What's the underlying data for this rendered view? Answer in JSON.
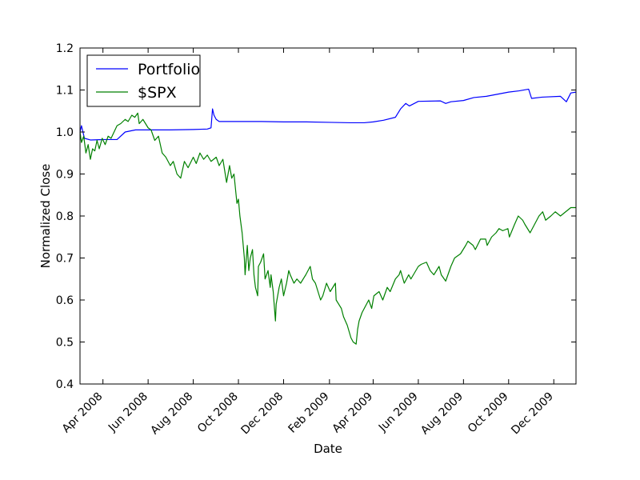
{
  "chart_data": {
    "type": "line",
    "xlabel": "Date",
    "ylabel": "Normalized Close",
    "xlim": [
      "2008-03-01",
      "2009-12-31"
    ],
    "ylim": [
      0.4,
      1.2
    ],
    "y_ticks": [
      "0.4",
      "0.5",
      "0.6",
      "0.7",
      "0.8",
      "0.9",
      "1.0",
      "1.1",
      "1.2"
    ],
    "x_ticks": [
      {
        "date": "2008-04-01",
        "label": "Apr 2008"
      },
      {
        "date": "2008-06-01",
        "label": "Jun 2008"
      },
      {
        "date": "2008-08-01",
        "label": "Aug 2008"
      },
      {
        "date": "2008-10-01",
        "label": "Oct 2008"
      },
      {
        "date": "2008-12-01",
        "label": "Dec 2008"
      },
      {
        "date": "2009-02-01",
        "label": "Feb 2009"
      },
      {
        "date": "2009-04-01",
        "label": "Apr 2009"
      },
      {
        "date": "2009-06-01",
        "label": "Jun 2009"
      },
      {
        "date": "2009-08-01",
        "label": "Aug 2009"
      },
      {
        "date": "2009-10-01",
        "label": "Oct 2009"
      },
      {
        "date": "2009-12-01",
        "label": "Dec 2009"
      }
    ],
    "grid": false,
    "legend_position": "upper-left",
    "series": [
      {
        "name": "Portfolio",
        "color": "#0000ff",
        "points": [
          [
            "2008-03-01",
            1.0
          ],
          [
            "2008-03-03",
            1.015
          ],
          [
            "2008-03-07",
            0.985
          ],
          [
            "2008-03-15",
            0.981
          ],
          [
            "2008-04-01",
            0.982
          ],
          [
            "2008-04-20",
            0.982
          ],
          [
            "2008-05-01",
            1.0
          ],
          [
            "2008-05-15",
            1.005
          ],
          [
            "2008-06-01",
            1.005
          ],
          [
            "2008-07-01",
            1.005
          ],
          [
            "2008-08-01",
            1.006
          ],
          [
            "2008-08-20",
            1.007
          ],
          [
            "2008-08-25",
            1.01
          ],
          [
            "2008-08-27",
            1.055
          ],
          [
            "2008-08-29",
            1.04
          ],
          [
            "2008-09-01",
            1.03
          ],
          [
            "2008-09-05",
            1.025
          ],
          [
            "2008-10-01",
            1.025
          ],
          [
            "2008-11-01",
            1.025
          ],
          [
            "2008-12-01",
            1.024
          ],
          [
            "2009-01-01",
            1.024
          ],
          [
            "2009-02-01",
            1.023
          ],
          [
            "2009-03-01",
            1.022
          ],
          [
            "2009-03-20",
            1.022
          ],
          [
            "2009-04-01",
            1.024
          ],
          [
            "2009-04-15",
            1.028
          ],
          [
            "2009-05-01",
            1.035
          ],
          [
            "2009-05-08",
            1.055
          ],
          [
            "2009-05-15",
            1.068
          ],
          [
            "2009-05-20",
            1.062
          ],
          [
            "2009-06-01",
            1.073
          ],
          [
            "2009-07-01",
            1.074
          ],
          [
            "2009-07-08",
            1.068
          ],
          [
            "2009-07-15",
            1.072
          ],
          [
            "2009-08-01",
            1.075
          ],
          [
            "2009-08-15",
            1.082
          ],
          [
            "2009-09-01",
            1.085
          ],
          [
            "2009-10-01",
            1.095
          ],
          [
            "2009-10-15",
            1.098
          ],
          [
            "2009-10-28",
            1.102
          ],
          [
            "2009-11-01",
            1.08
          ],
          [
            "2009-11-15",
            1.083
          ],
          [
            "2009-12-10",
            1.085
          ],
          [
            "2009-12-18",
            1.072
          ],
          [
            "2009-12-24",
            1.093
          ],
          [
            "2009-12-31",
            1.095
          ]
        ]
      },
      {
        "name": "$SPX",
        "color": "#008000",
        "points": [
          [
            "2008-03-01",
            1.0
          ],
          [
            "2008-03-03",
            0.975
          ],
          [
            "2008-03-06",
            0.99
          ],
          [
            "2008-03-09",
            0.95
          ],
          [
            "2008-03-12",
            0.97
          ],
          [
            "2008-03-15",
            0.935
          ],
          [
            "2008-03-18",
            0.96
          ],
          [
            "2008-03-21",
            0.955
          ],
          [
            "2008-03-24",
            0.98
          ],
          [
            "2008-03-27",
            0.96
          ],
          [
            "2008-03-31",
            0.985
          ],
          [
            "2008-04-04",
            0.97
          ],
          [
            "2008-04-08",
            0.99
          ],
          [
            "2008-04-12",
            0.985
          ],
          [
            "2008-04-16",
            1.0
          ],
          [
            "2008-04-20",
            1.015
          ],
          [
            "2008-04-25",
            1.02
          ],
          [
            "2008-05-01",
            1.03
          ],
          [
            "2008-05-05",
            1.025
          ],
          [
            "2008-05-10",
            1.04
          ],
          [
            "2008-05-14",
            1.035
          ],
          [
            "2008-05-18",
            1.045
          ],
          [
            "2008-05-20",
            1.02
          ],
          [
            "2008-05-25",
            1.03
          ],
          [
            "2008-06-01",
            1.01
          ],
          [
            "2008-06-05",
            1.005
          ],
          [
            "2008-06-10",
            0.98
          ],
          [
            "2008-06-15",
            0.99
          ],
          [
            "2008-06-20",
            0.95
          ],
          [
            "2008-06-25",
            0.94
          ],
          [
            "2008-07-01",
            0.92
          ],
          [
            "2008-07-05",
            0.93
          ],
          [
            "2008-07-10",
            0.9
          ],
          [
            "2008-07-15",
            0.89
          ],
          [
            "2008-07-20",
            0.93
          ],
          [
            "2008-07-25",
            0.915
          ],
          [
            "2008-08-01",
            0.94
          ],
          [
            "2008-08-05",
            0.925
          ],
          [
            "2008-08-10",
            0.95
          ],
          [
            "2008-08-15",
            0.935
          ],
          [
            "2008-08-20",
            0.945
          ],
          [
            "2008-08-25",
            0.93
          ],
          [
            "2008-09-01",
            0.94
          ],
          [
            "2008-09-05",
            0.92
          ],
          [
            "2008-09-10",
            0.935
          ],
          [
            "2008-09-15",
            0.88
          ],
          [
            "2008-09-19",
            0.92
          ],
          [
            "2008-09-22",
            0.89
          ],
          [
            "2008-09-25",
            0.9
          ],
          [
            "2008-09-29",
            0.83
          ],
          [
            "2008-10-01",
            0.84
          ],
          [
            "2008-10-03",
            0.8
          ],
          [
            "2008-10-06",
            0.76
          ],
          [
            "2008-10-09",
            0.7
          ],
          [
            "2008-10-10",
            0.66
          ],
          [
            "2008-10-13",
            0.73
          ],
          [
            "2008-10-15",
            0.67
          ],
          [
            "2008-10-17",
            0.7
          ],
          [
            "2008-10-20",
            0.72
          ],
          [
            "2008-10-22",
            0.66
          ],
          [
            "2008-10-24",
            0.63
          ],
          [
            "2008-10-27",
            0.61
          ],
          [
            "2008-10-28",
            0.68
          ],
          [
            "2008-10-31",
            0.69
          ],
          [
            "2008-11-04",
            0.71
          ],
          [
            "2008-11-06",
            0.65
          ],
          [
            "2008-11-10",
            0.67
          ],
          [
            "2008-11-13",
            0.63
          ],
          [
            "2008-11-14",
            0.66
          ],
          [
            "2008-11-17",
            0.62
          ],
          [
            "2008-11-20",
            0.55
          ],
          [
            "2008-11-21",
            0.59
          ],
          [
            "2008-11-25",
            0.63
          ],
          [
            "2008-11-28",
            0.65
          ],
          [
            "2008-12-01",
            0.61
          ],
          [
            "2008-12-05",
            0.64
          ],
          [
            "2008-12-08",
            0.67
          ],
          [
            "2008-12-10",
            0.66
          ],
          [
            "2008-12-15",
            0.64
          ],
          [
            "2008-12-19",
            0.65
          ],
          [
            "2008-12-24",
            0.64
          ],
          [
            "2008-12-31",
            0.66
          ],
          [
            "2009-01-06",
            0.68
          ],
          [
            "2009-01-09",
            0.65
          ],
          [
            "2009-01-13",
            0.64
          ],
          [
            "2009-01-20",
            0.6
          ],
          [
            "2009-01-23",
            0.61
          ],
          [
            "2009-01-28",
            0.64
          ],
          [
            "2009-02-02",
            0.62
          ],
          [
            "2009-02-09",
            0.64
          ],
          [
            "2009-02-10",
            0.6
          ],
          [
            "2009-02-17",
            0.58
          ],
          [
            "2009-02-20",
            0.56
          ],
          [
            "2009-02-25",
            0.54
          ],
          [
            "2009-03-02",
            0.51
          ],
          [
            "2009-03-05",
            0.5
          ],
          [
            "2009-03-09",
            0.495
          ],
          [
            "2009-03-11",
            0.53
          ],
          [
            "2009-03-13",
            0.55
          ],
          [
            "2009-03-17",
            0.57
          ],
          [
            "2009-03-23",
            0.59
          ],
          [
            "2009-03-26",
            0.6
          ],
          [
            "2009-03-30",
            0.58
          ],
          [
            "2009-04-02",
            0.61
          ],
          [
            "2009-04-09",
            0.62
          ],
          [
            "2009-04-14",
            0.6
          ],
          [
            "2009-04-20",
            0.63
          ],
          [
            "2009-04-24",
            0.62
          ],
          [
            "2009-05-01",
            0.65
          ],
          [
            "2009-05-06",
            0.66
          ],
          [
            "2009-05-08",
            0.67
          ],
          [
            "2009-05-13",
            0.64
          ],
          [
            "2009-05-19",
            0.66
          ],
          [
            "2009-05-22",
            0.65
          ],
          [
            "2009-06-01",
            0.68
          ],
          [
            "2009-06-05",
            0.685
          ],
          [
            "2009-06-12",
            0.69
          ],
          [
            "2009-06-17",
            0.67
          ],
          [
            "2009-06-22",
            0.66
          ],
          [
            "2009-06-29",
            0.68
          ],
          [
            "2009-07-02",
            0.66
          ],
          [
            "2009-07-08",
            0.645
          ],
          [
            "2009-07-15",
            0.68
          ],
          [
            "2009-07-20",
            0.7
          ],
          [
            "2009-07-28",
            0.71
          ],
          [
            "2009-08-04",
            0.73
          ],
          [
            "2009-08-07",
            0.74
          ],
          [
            "2009-08-14",
            0.73
          ],
          [
            "2009-08-17",
            0.72
          ],
          [
            "2009-08-24",
            0.745
          ],
          [
            "2009-08-31",
            0.745
          ],
          [
            "2009-09-02",
            0.73
          ],
          [
            "2009-09-08",
            0.75
          ],
          [
            "2009-09-14",
            0.76
          ],
          [
            "2009-09-18",
            0.77
          ],
          [
            "2009-09-23",
            0.765
          ],
          [
            "2009-09-30",
            0.77
          ],
          [
            "2009-10-02",
            0.75
          ],
          [
            "2009-10-09",
            0.78
          ],
          [
            "2009-10-14",
            0.8
          ],
          [
            "2009-10-20",
            0.79
          ],
          [
            "2009-10-23",
            0.78
          ],
          [
            "2009-10-30",
            0.76
          ],
          [
            "2009-11-05",
            0.78
          ],
          [
            "2009-11-11",
            0.8
          ],
          [
            "2009-11-16",
            0.81
          ],
          [
            "2009-11-20",
            0.79
          ],
          [
            "2009-11-27",
            0.8
          ],
          [
            "2009-12-03",
            0.81
          ],
          [
            "2009-12-10",
            0.8
          ],
          [
            "2009-12-17",
            0.81
          ],
          [
            "2009-12-24",
            0.82
          ],
          [
            "2009-12-31",
            0.82
          ]
        ]
      }
    ]
  }
}
